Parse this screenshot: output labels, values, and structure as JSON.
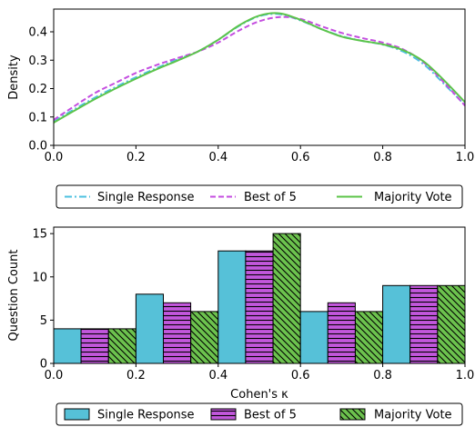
{
  "chart_data": [
    {
      "type": "line",
      "title": "",
      "xlabel": "",
      "ylabel": "Density",
      "xlim": [
        0.0,
        1.0
      ],
      "ylim": [
        0.0,
        0.48
      ],
      "xticks": [
        "0.0",
        "0.2",
        "0.4",
        "0.6",
        "0.8",
        "1.0"
      ],
      "yticks": [
        "0.0",
        "0.1",
        "0.2",
        "0.3",
        "0.4"
      ],
      "legend_position": "below",
      "x": [
        0.0,
        0.05,
        0.1,
        0.15,
        0.2,
        0.25,
        0.3,
        0.35,
        0.4,
        0.45,
        0.5,
        0.55,
        0.6,
        0.65,
        0.7,
        0.75,
        0.8,
        0.85,
        0.9,
        0.95,
        1.0
      ],
      "series": [
        {
          "name": "Single Response",
          "color": "#4ec1e0",
          "style": "dashdot",
          "values": [
            0.085,
            0.127,
            0.168,
            0.205,
            0.24,
            0.272,
            0.302,
            0.33,
            0.372,
            0.42,
            0.455,
            0.462,
            0.44,
            0.41,
            0.385,
            0.368,
            0.355,
            0.33,
            0.285,
            0.215,
            0.142
          ]
        },
        {
          "name": "Best of 5",
          "color": "#c44ee0",
          "style": "dashed",
          "values": [
            0.09,
            0.138,
            0.184,
            0.22,
            0.255,
            0.283,
            0.307,
            0.33,
            0.362,
            0.404,
            0.437,
            0.452,
            0.445,
            0.42,
            0.396,
            0.378,
            0.362,
            0.338,
            0.292,
            0.22,
            0.14
          ]
        },
        {
          "name": "Majority Vote",
          "color": "#5cc44a",
          "style": "solid",
          "values": [
            0.08,
            0.122,
            0.163,
            0.2,
            0.235,
            0.268,
            0.298,
            0.33,
            0.372,
            0.422,
            0.457,
            0.465,
            0.442,
            0.41,
            0.383,
            0.368,
            0.356,
            0.335,
            0.295,
            0.228,
            0.152
          ]
        }
      ]
    },
    {
      "type": "bar",
      "title": "",
      "xlabel": "Cohen's κ",
      "ylabel": "Question Count",
      "xlim": [
        0.0,
        1.0
      ],
      "ylim": [
        0,
        15.75
      ],
      "xticks": [
        "0.0",
        "0.2",
        "0.4",
        "0.6",
        "0.8",
        "1.0"
      ],
      "yticks": [
        "0",
        "5",
        "10",
        "15"
      ],
      "legend_position": "below",
      "bins": [
        [
          0.0,
          0.2
        ],
        [
          0.2,
          0.4
        ],
        [
          0.4,
          0.6
        ],
        [
          0.6,
          0.8
        ],
        [
          0.8,
          1.0
        ]
      ],
      "series": [
        {
          "name": "Single Response",
          "color": "#56c1d8",
          "hatch": "none",
          "values": [
            4,
            8,
            13,
            6,
            9
          ]
        },
        {
          "name": "Best of 5",
          "color": "#c257dc",
          "hatch": "horizontal",
          "values": [
            4,
            7,
            13,
            7,
            9
          ]
        },
        {
          "name": "Majority Vote",
          "color": "#6cc24e",
          "hatch": "diagonal",
          "values": [
            4,
            6,
            15,
            6,
            9
          ]
        }
      ]
    }
  ]
}
